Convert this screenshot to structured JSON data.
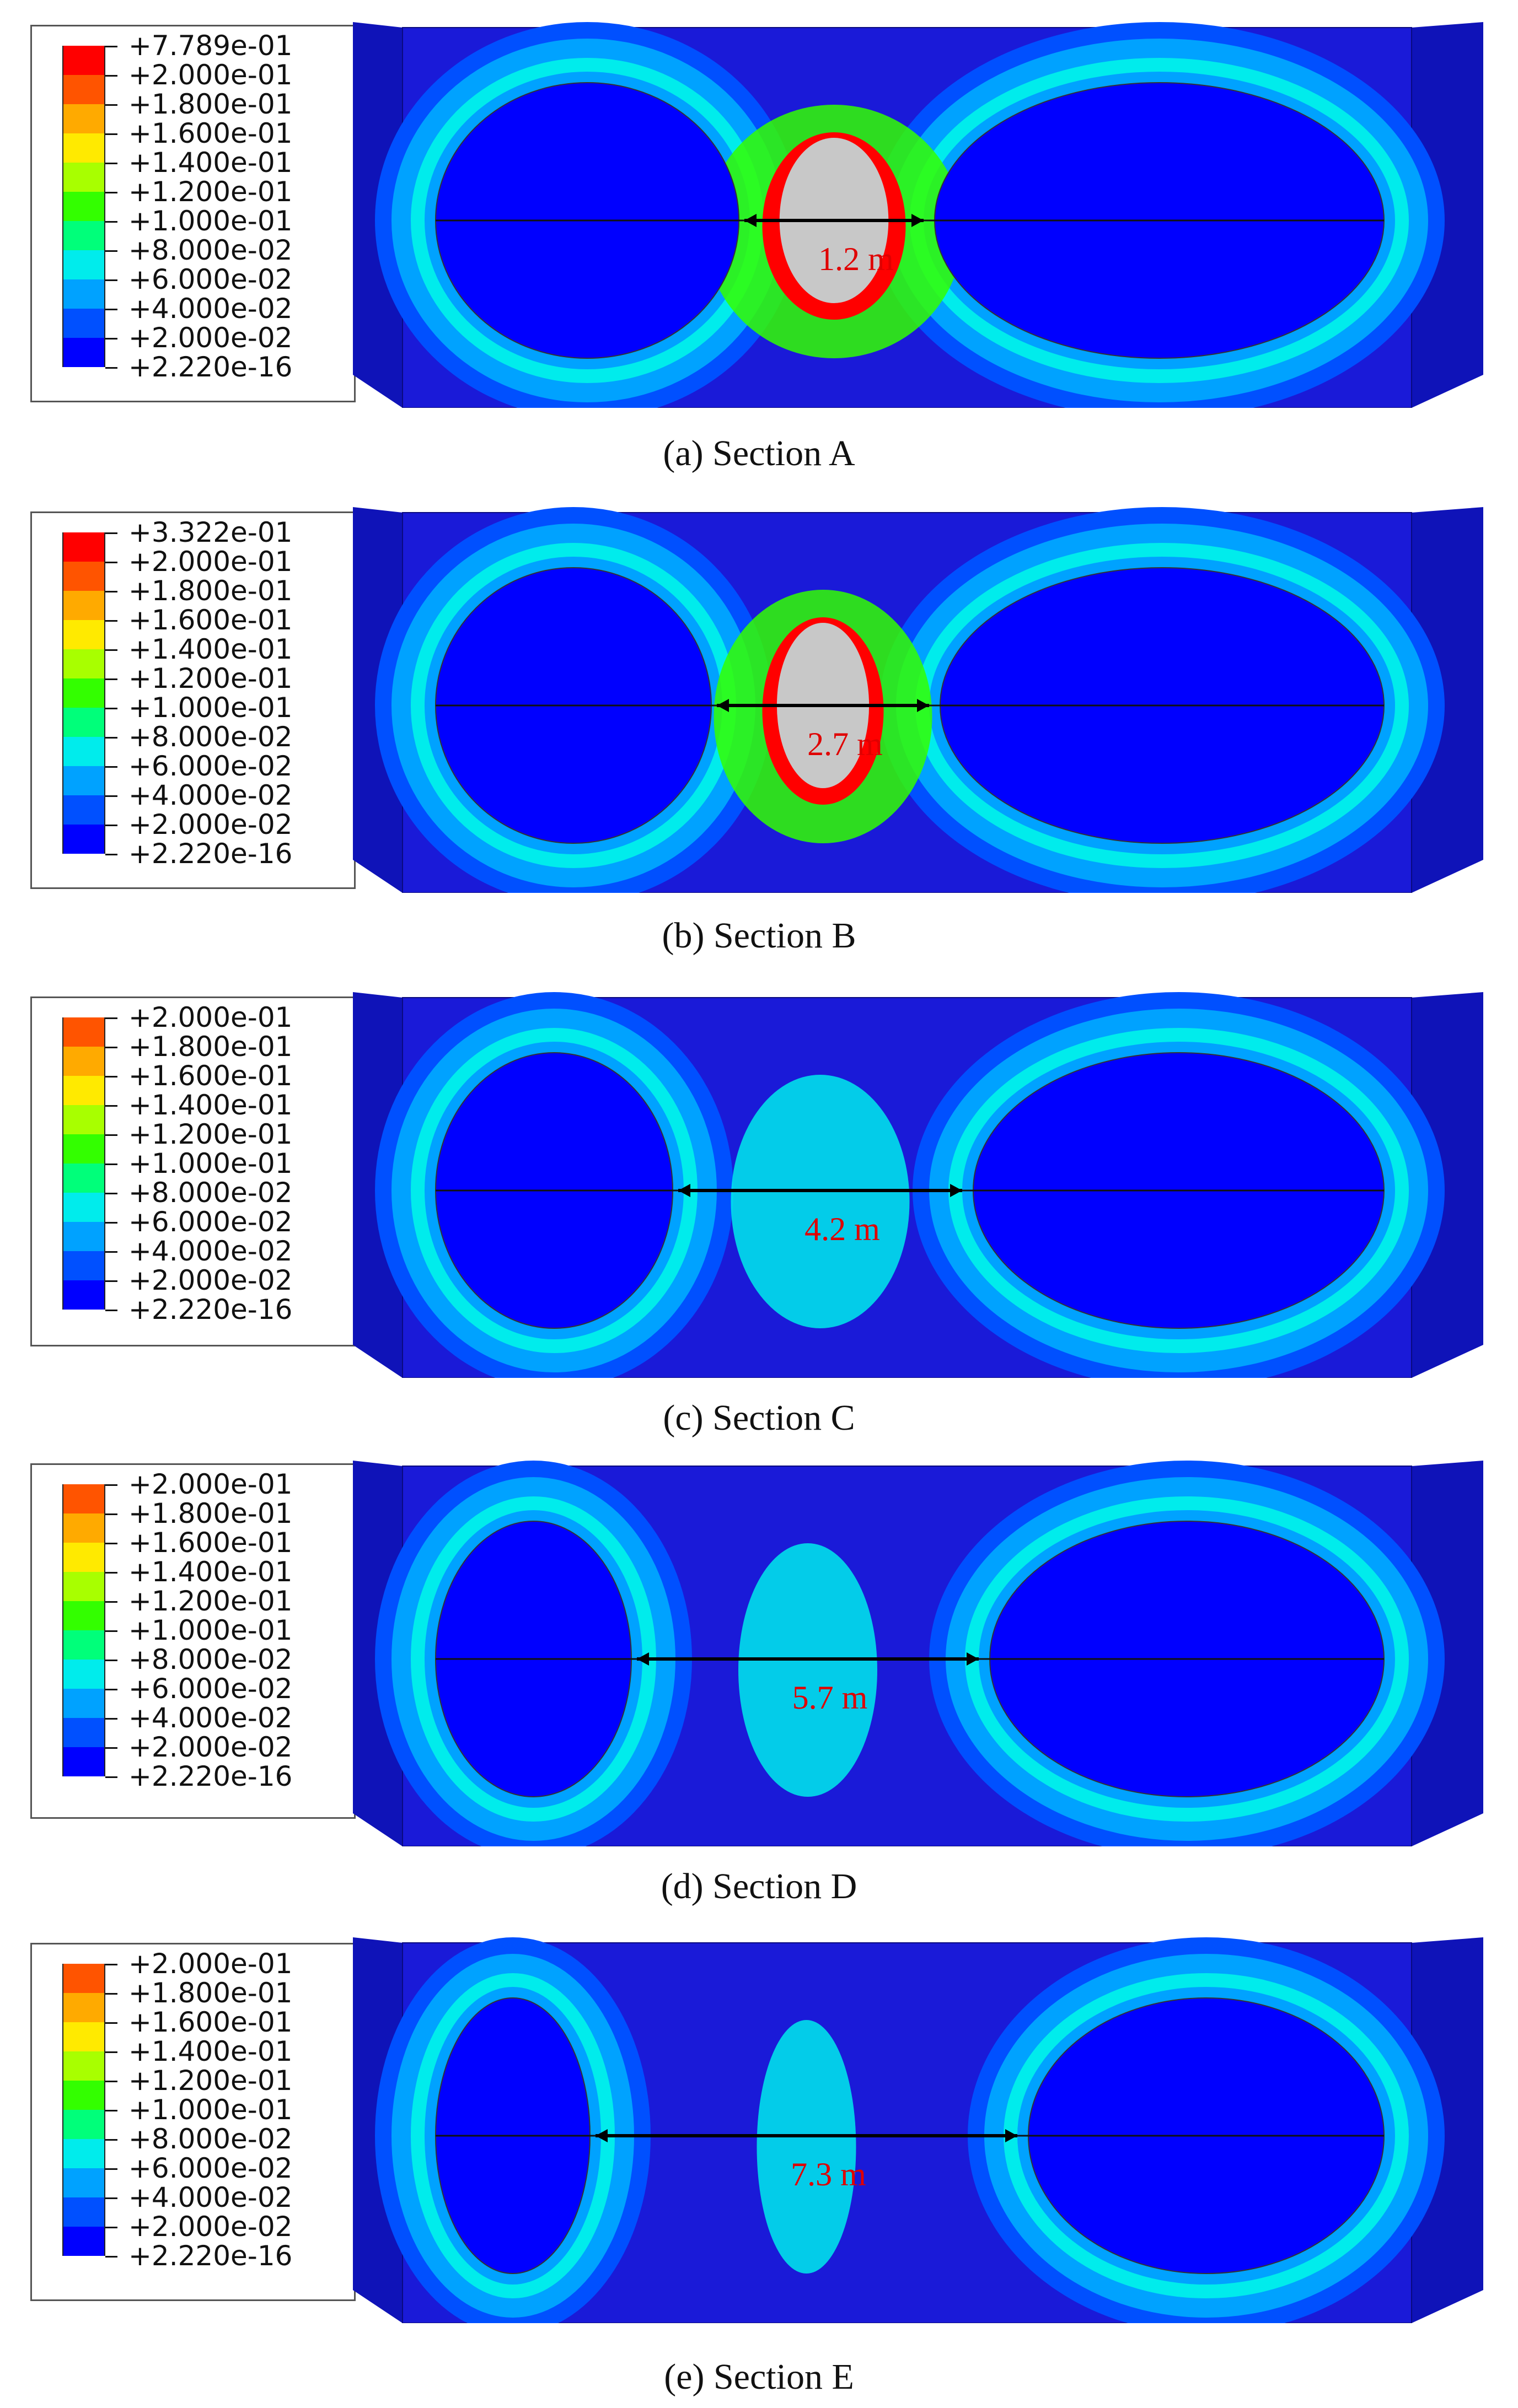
{
  "colors": {
    "background_blue": "#1a1ad8",
    "side_face_blue": "#0f13b8",
    "legend_scale": [
      "#0000ff",
      "#0050ff",
      "#00a2ff",
      "#00ecec",
      "#00ff7a",
      "#33ff00",
      "#a8ff00",
      "#ffea00",
      "#ffaa00",
      "#ff5400",
      "#ff0000",
      "#c8c8c8"
    ],
    "dimension_text": "#e00000"
  },
  "panels": [
    {
      "caption": "(a) Section A",
      "distance_label": "1.2 m",
      "legend": [
        "+7.789e-01",
        "+2.000e-01",
        "+1.800e-01",
        "+1.600e-01",
        "+1.400e-01",
        "+1.200e-01",
        "+1.000e-01",
        "+8.000e-02",
        "+6.000e-02",
        "+4.000e-02",
        "+2.000e-02",
        "+2.220e-16"
      ]
    },
    {
      "caption": "(b) Section B",
      "distance_label": "2.7 m",
      "legend": [
        "+3.322e-01",
        "+2.000e-01",
        "+1.800e-01",
        "+1.600e-01",
        "+1.400e-01",
        "+1.200e-01",
        "+1.000e-01",
        "+8.000e-02",
        "+6.000e-02",
        "+4.000e-02",
        "+2.000e-02",
        "+2.220e-16"
      ]
    },
    {
      "caption": "(c) Section C",
      "distance_label": "4.2 m",
      "legend": [
        "+2.000e-01",
        "+1.800e-01",
        "+1.600e-01",
        "+1.400e-01",
        "+1.200e-01",
        "+1.000e-01",
        "+8.000e-02",
        "+6.000e-02",
        "+4.000e-02",
        "+2.000e-02",
        "+2.220e-16"
      ]
    },
    {
      "caption": "(d) Section D",
      "distance_label": "5.7 m",
      "legend": [
        "+2.000e-01",
        "+1.800e-01",
        "+1.600e-01",
        "+1.400e-01",
        "+1.200e-01",
        "+1.000e-01",
        "+8.000e-02",
        "+6.000e-02",
        "+4.000e-02",
        "+2.000e-02",
        "+2.220e-16"
      ]
    },
    {
      "caption": "(e) Section E",
      "distance_label": "7.3 m",
      "legend": [
        "+2.000e-01",
        "+1.800e-01",
        "+1.600e-01",
        "+1.400e-01",
        "+1.200e-01",
        "+1.000e-01",
        "+8.000e-02",
        "+6.000e-02",
        "+4.000e-02",
        "+2.000e-02",
        "+2.220e-16"
      ]
    }
  ]
}
